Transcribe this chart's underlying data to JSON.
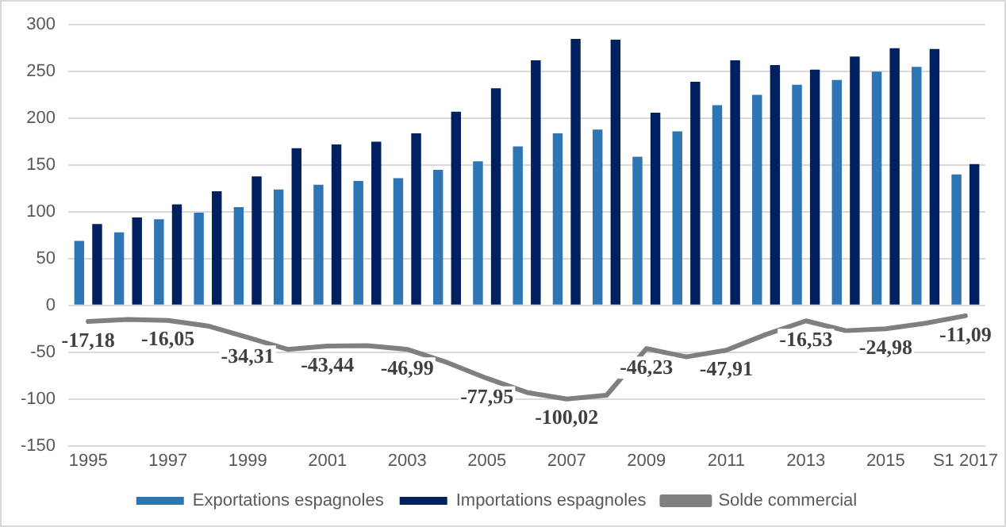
{
  "chart_data": {
    "type": "bar",
    "categories": [
      "1995",
      null,
      "1997",
      null,
      "1999",
      null,
      "2001",
      null,
      "2003",
      null,
      "2005",
      null,
      "2007",
      null,
      "2009",
      null,
      "2011",
      null,
      "2013",
      null,
      "2015",
      null,
      "S1 2017"
    ],
    "series": [
      {
        "name": "Exportations espagnoles",
        "color": "#2e75b6",
        "values": [
          69,
          78,
          92,
          99,
          105,
          124,
          129,
          133,
          136,
          145,
          154,
          170,
          184,
          188,
          159,
          186,
          214,
          225,
          236,
          241,
          250,
          255,
          140
        ]
      },
      {
        "name": "Importations espagnoles",
        "color": "#002060",
        "values": [
          87,
          94,
          108,
          122,
          138,
          168,
          172,
          175,
          184,
          207,
          232,
          262,
          285,
          284,
          206,
          239,
          262,
          257,
          252,
          266,
          275,
          274,
          151
        ]
      },
      {
        "name": "Solde commercial",
        "type": "line",
        "color": "#7f7f7f",
        "values": [
          -17.18,
          -15,
          -16.05,
          -22,
          -34.31,
          -47,
          -43.44,
          -43,
          -46.99,
          -61,
          -77.95,
          -93,
          -100.02,
          -96,
          -46.23,
          -55,
          -47.91,
          -31,
          -16.53,
          -27,
          -24.98,
          -19,
          -11.09
        ],
        "value_labels": [
          "-17,18",
          null,
          "-16,05",
          null,
          "-34,31",
          null,
          "-43,44",
          null,
          "-46,99",
          null,
          "-77,95",
          null,
          "-100,02",
          null,
          "-46,23",
          null,
          "-47,91",
          null,
          "-16,53",
          null,
          "-24,98",
          null,
          "-11,09"
        ]
      }
    ],
    "ylim": [
      -150,
      300
    ],
    "yticks": [
      -150,
      -100,
      -50,
      0,
      50,
      100,
      150,
      200,
      250,
      300
    ],
    "grid": "y",
    "legend": "bottom",
    "marker": "none"
  }
}
